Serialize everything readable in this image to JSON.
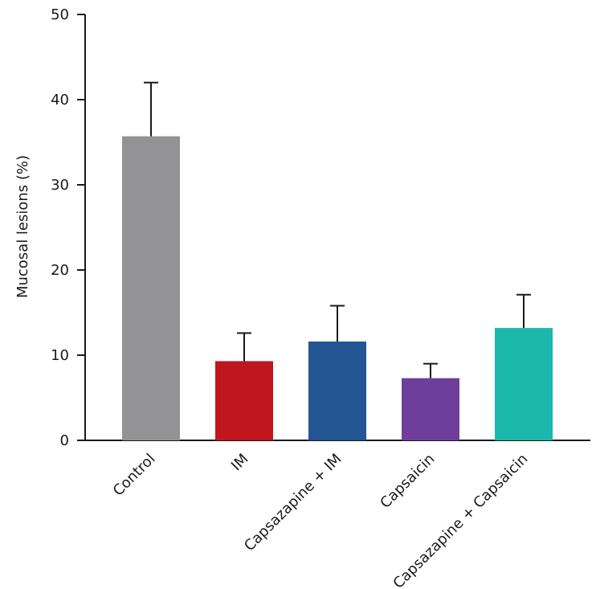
{
  "chart_data": {
    "type": "bar",
    "title": "",
    "xlabel": "",
    "ylabel": "Mucosal lesions (%)",
    "ylim": [
      0,
      50
    ],
    "yticks": [
      0,
      10,
      20,
      30,
      40,
      50
    ],
    "grid": false,
    "categories": [
      "Control",
      "IM",
      "Capsazapine + IM",
      "Capsaicin",
      "Capsazapine + Capsaicin"
    ],
    "values": [
      35.7,
      9.3,
      11.6,
      7.3,
      13.2
    ],
    "errors": [
      6.3,
      3.3,
      4.2,
      1.7,
      3.9
    ],
    "colors": [
      "#939396",
      "#bf1620",
      "#225592",
      "#6e3f9a",
      "#1cb8ab"
    ]
  }
}
